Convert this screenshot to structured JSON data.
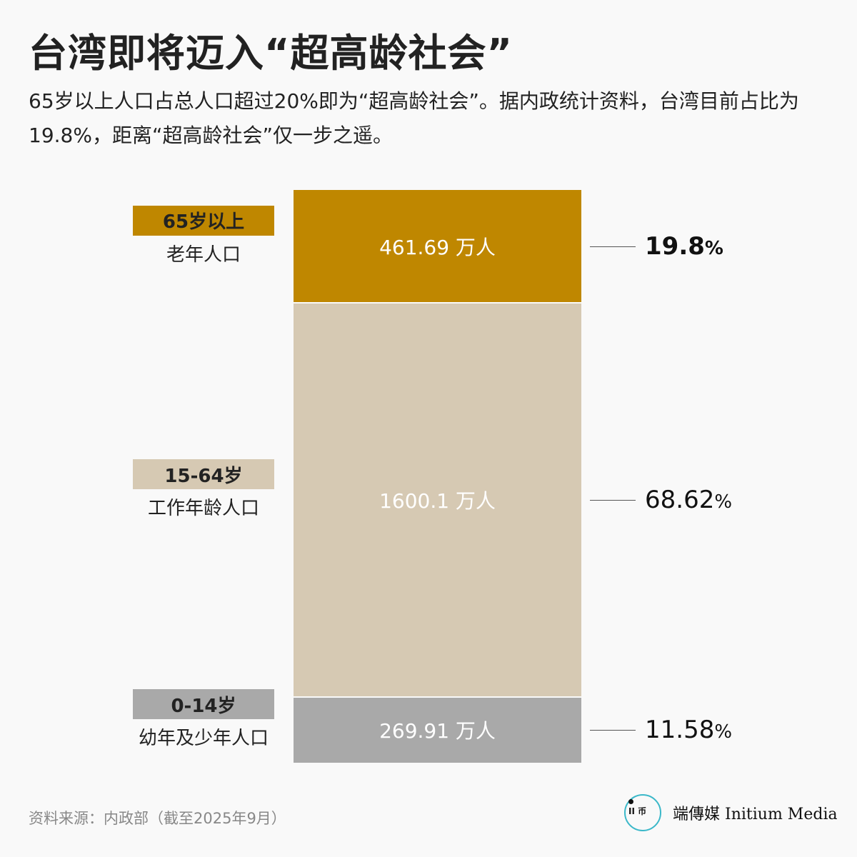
{
  "title": "台湾即将迈入“超高龄社会”",
  "subtitle": "65岁以上人口占总人口超过20%即为“超高龄社会”。据内政统计资料，台湾目前占比为19.8%，距离“超高龄社会”仅一步之遥。",
  "chart_data": {
    "type": "bar",
    "stacked": true,
    "unit": "万人",
    "categories": [
      "65岁以上",
      "15-64岁",
      "0-14岁"
    ],
    "category_descriptions": [
      "老年人口",
      "工作年龄人口",
      "幼年及少年人口"
    ],
    "values": [
      461.69,
      1600.1,
      269.91
    ],
    "value_labels": [
      "461.69 万人",
      "1600.1 万人",
      "269.91 万人"
    ],
    "percent": [
      19.8,
      68.62,
      11.58
    ],
    "percent_labels": [
      "19.8",
      "68.62",
      "11.58"
    ],
    "percent_sign": "%",
    "colors": [
      "#BF8700",
      "#D6C9B3",
      "#A9A9A9"
    ]
  },
  "source": "资料来源：内政部（截至2025年9月）",
  "logo": {
    "glyph": "端",
    "name_zh": "端傳媒",
    "name_en": "Initium Media",
    "color": "#3BB8C9"
  }
}
